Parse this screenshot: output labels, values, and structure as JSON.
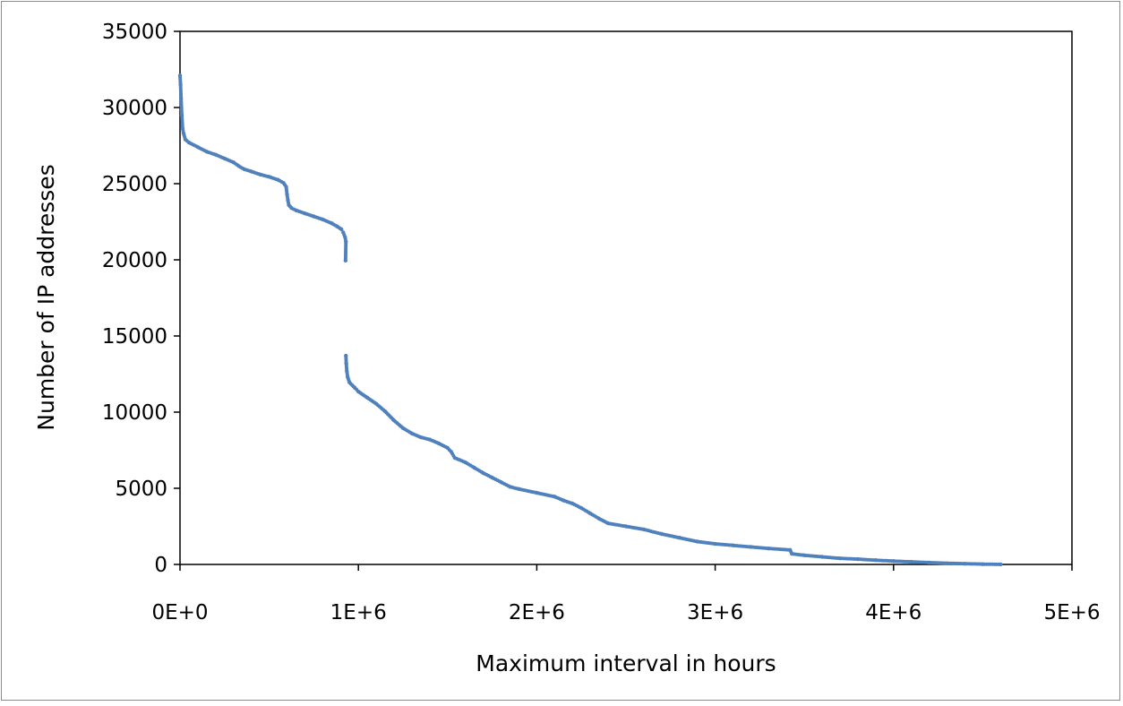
{
  "chart_data": {
    "type": "scatter",
    "title": "",
    "xlabel": "Maximum interval in hours",
    "ylabel": "Number of IP addresses",
    "xlim": [
      0,
      5000000
    ],
    "ylim": [
      0,
      35000
    ],
    "x_ticks": [
      0,
      1000000,
      2000000,
      3000000,
      4000000,
      5000000
    ],
    "x_tick_labels": [
      "0E+0",
      "1E+6",
      "2E+6",
      "3E+6",
      "4E+6",
      "5E+6"
    ],
    "y_ticks": [
      0,
      5000,
      10000,
      15000,
      20000,
      25000,
      30000,
      35000
    ],
    "y_tick_labels": [
      "0",
      "5000",
      "10000",
      "15000",
      "20000",
      "25000",
      "30000",
      "35000"
    ],
    "grid": false,
    "legend": "none",
    "marker_color": "#4F81BD",
    "series": [
      {
        "points": [
          [
            0,
            32100
          ],
          [
            3000,
            31500
          ],
          [
            6000,
            30600
          ],
          [
            10000,
            29500
          ],
          [
            15000,
            28600
          ],
          [
            20000,
            28300
          ],
          [
            30000,
            27900
          ],
          [
            50000,
            27700
          ],
          [
            100000,
            27400
          ],
          [
            150000,
            27100
          ],
          [
            200000,
            26900
          ],
          [
            250000,
            26650
          ],
          [
            300000,
            26400
          ],
          [
            330000,
            26150
          ],
          [
            360000,
            25950
          ],
          [
            400000,
            25800
          ],
          [
            450000,
            25600
          ],
          [
            500000,
            25450
          ],
          [
            550000,
            25250
          ],
          [
            580000,
            25050
          ],
          [
            595000,
            24800
          ],
          [
            600000,
            24300
          ],
          [
            605000,
            23900
          ],
          [
            610000,
            23600
          ],
          [
            625000,
            23400
          ],
          [
            650000,
            23250
          ],
          [
            700000,
            23050
          ],
          [
            750000,
            22850
          ],
          [
            800000,
            22650
          ],
          [
            850000,
            22400
          ],
          [
            880000,
            22200
          ],
          [
            905000,
            22000
          ],
          [
            915000,
            21800
          ],
          [
            925000,
            21500
          ],
          [
            930000,
            21200
          ],
          [
            928000,
            19950
          ],
          [
            930000,
            13700
          ],
          [
            932000,
            13200
          ],
          [
            935000,
            12700
          ],
          [
            940000,
            12300
          ],
          [
            950000,
            11950
          ],
          [
            980000,
            11600
          ],
          [
            1000000,
            11350
          ],
          [
            1050000,
            10950
          ],
          [
            1100000,
            10550
          ],
          [
            1150000,
            10050
          ],
          [
            1200000,
            9450
          ],
          [
            1250000,
            8950
          ],
          [
            1300000,
            8600
          ],
          [
            1350000,
            8350
          ],
          [
            1400000,
            8200
          ],
          [
            1450000,
            7950
          ],
          [
            1500000,
            7650
          ],
          [
            1520000,
            7400
          ],
          [
            1540000,
            7000
          ],
          [
            1600000,
            6700
          ],
          [
            1650000,
            6350
          ],
          [
            1700000,
            6000
          ],
          [
            1750000,
            5700
          ],
          [
            1800000,
            5400
          ],
          [
            1850000,
            5100
          ],
          [
            1900000,
            4950
          ],
          [
            2000000,
            4700
          ],
          [
            2100000,
            4450
          ],
          [
            2150000,
            4200
          ],
          [
            2200000,
            4000
          ],
          [
            2250000,
            3700
          ],
          [
            2300000,
            3350
          ],
          [
            2350000,
            3000
          ],
          [
            2400000,
            2700
          ],
          [
            2500000,
            2500
          ],
          [
            2600000,
            2300
          ],
          [
            2700000,
            2000
          ],
          [
            2800000,
            1750
          ],
          [
            2900000,
            1500
          ],
          [
            3000000,
            1350
          ],
          [
            3100000,
            1250
          ],
          [
            3200000,
            1150
          ],
          [
            3300000,
            1050
          ],
          [
            3420000,
            950
          ],
          [
            3430000,
            700
          ],
          [
            3500000,
            600
          ],
          [
            3600000,
            500
          ],
          [
            3700000,
            400
          ],
          [
            3800000,
            350
          ],
          [
            3900000,
            280
          ],
          [
            4000000,
            220
          ],
          [
            4100000,
            170
          ],
          [
            4200000,
            120
          ],
          [
            4300000,
            80
          ],
          [
            4400000,
            50
          ],
          [
            4500000,
            20
          ],
          [
            4600000,
            5
          ]
        ]
      }
    ]
  }
}
